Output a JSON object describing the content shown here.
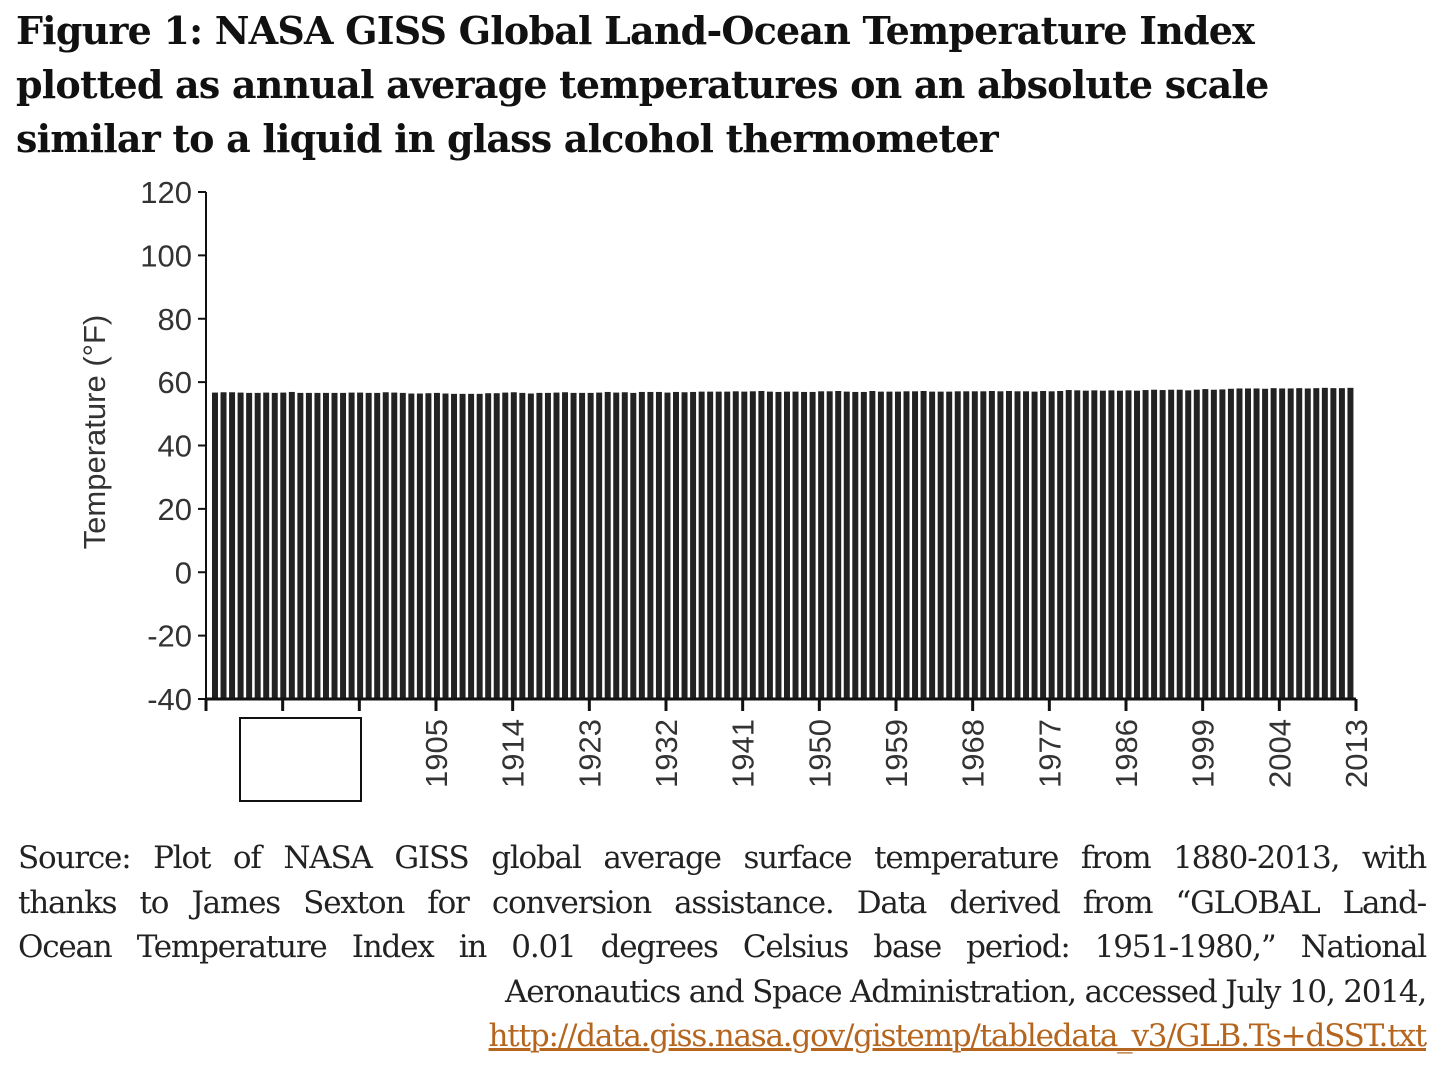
{
  "figure": {
    "title_lines": [
      "Figure 1: NASA GISS Global Land-Ocean Temperature Index",
      "plotted as annual average temperatures on an absolute scale",
      "similar to a liquid in glass alcohol thermometer"
    ]
  },
  "chart_data": {
    "type": "bar",
    "ylabel": "Temperature (°F)",
    "xlabel": "",
    "ylim": [
      -40,
      120
    ],
    "yticks": [
      -40,
      -20,
      0,
      20,
      40,
      60,
      80,
      100,
      120
    ],
    "grid": false,
    "bar_color": "#222222",
    "x_start": 1880,
    "x_end": 2013,
    "xtick_labels": [
      "1905",
      "1914",
      "1923",
      "1932",
      "1941",
      "1950",
      "1959",
      "1968",
      "1977",
      "1986",
      "1999",
      "2004",
      "2013"
    ],
    "values": [
      56.7,
      56.8,
      56.8,
      56.7,
      56.6,
      56.6,
      56.7,
      56.6,
      56.7,
      56.9,
      56.6,
      56.6,
      56.6,
      56.6,
      56.6,
      56.6,
      56.7,
      56.7,
      56.6,
      56.6,
      56.8,
      56.7,
      56.6,
      56.4,
      56.4,
      56.5,
      56.6,
      56.4,
      56.3,
      56.3,
      56.3,
      56.3,
      56.5,
      56.5,
      56.7,
      56.8,
      56.6,
      56.4,
      56.6,
      56.6,
      56.7,
      56.8,
      56.6,
      56.6,
      56.6,
      56.7,
      56.9,
      56.7,
      56.8,
      56.6,
      56.9,
      56.9,
      56.9,
      56.7,
      56.9,
      56.8,
      56.9,
      57.0,
      57.0,
      57.0,
      57.0,
      57.1,
      57.0,
      57.1,
      57.2,
      57.0,
      56.9,
      57.0,
      57.0,
      56.9,
      56.9,
      57.1,
      57.1,
      57.2,
      57.0,
      56.9,
      56.9,
      57.2,
      57.0,
      57.0,
      57.0,
      57.1,
      57.1,
      57.2,
      57.0,
      57.0,
      57.0,
      57.1,
      57.1,
      57.1,
      57.1,
      57.2,
      57.1,
      57.2,
      57.1,
      57.1,
      57.0,
      57.2,
      57.1,
      57.2,
      57.5,
      57.4,
      57.3,
      57.4,
      57.3,
      57.4,
      57.3,
      57.4,
      57.3,
      57.5,
      57.6,
      57.5,
      57.6,
      57.6,
      57.4,
      57.6,
      57.8,
      57.6,
      57.7,
      57.9,
      58.0,
      58.0,
      58.0,
      57.9,
      58.1,
      58.0,
      58.0,
      58.1,
      58.0,
      58.1,
      58.2,
      58.1,
      58.1,
      58.2
    ]
  },
  "source": {
    "lines": [
      "Source: Plot of NASA GISS global average surface temperature from 1880-2013, with",
      "thanks to James Sexton for conversion assistance. Data derived from “GLOBAL Land-",
      "Ocean Temperature Index in 0.01 degrees Celsius base period: 1951-1980,” National",
      "Aeronautics and Space Administration, accessed July 10, 2014,"
    ],
    "link": "http://data.giss.nasa.gov/gistemp/tabledata_v3/GLB.Ts+dSST.txt"
  }
}
